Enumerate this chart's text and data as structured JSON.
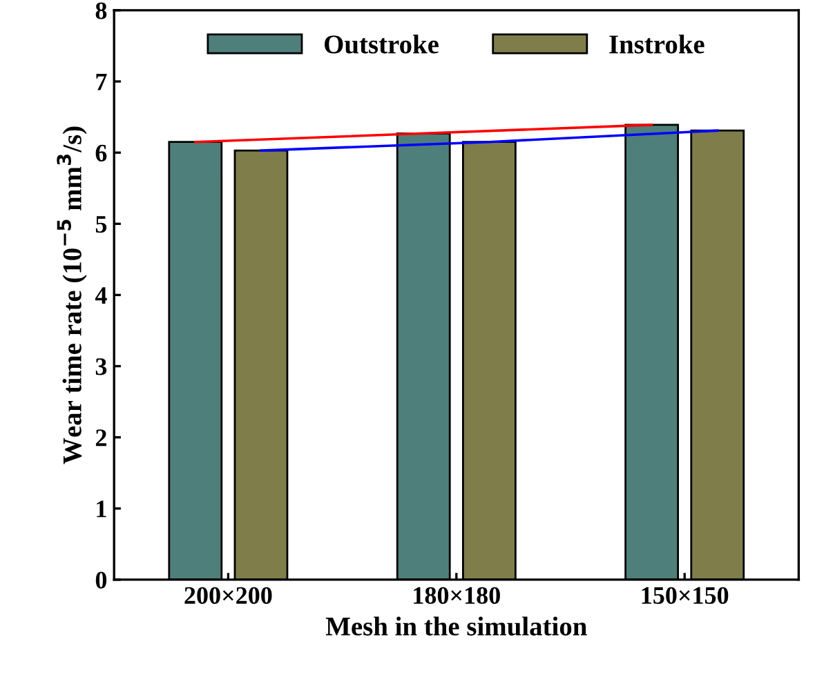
{
  "chart_data": {
    "type": "bar",
    "xlabel": "Mesh in the simulation",
    "ylabel": "Wear time rate (10$^{−5}$ mm$^{3}$/s)",
    "categories": [
      "200×200",
      "180×180",
      "150×150"
    ],
    "series": [
      {
        "name": "Outstroke",
        "color": "#4e7f7b",
        "values": [
          6.15,
          6.27,
          6.39
        ]
      },
      {
        "name": "Instroke",
        "color": "#7f7d4a",
        "values": [
          6.03,
          6.15,
          6.31
        ]
      },
      {
        "type": "line",
        "color": "#ff0000",
        "values": [
          6.15,
          6.27,
          6.39
        ]
      },
      {
        "type": "line",
        "color": "#0000ff",
        "values": [
          6.03,
          6.15,
          6.31
        ]
      }
    ],
    "ylim": [
      0,
      8
    ],
    "yticks": [
      0,
      1,
      2,
      3,
      4,
      5,
      6,
      7,
      8
    ],
    "grid": false,
    "legend": "top"
  }
}
